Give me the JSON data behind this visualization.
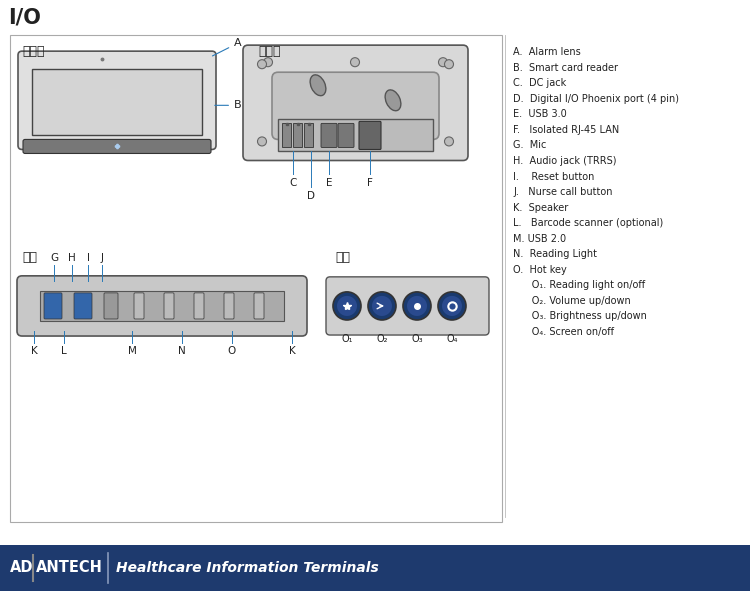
{
  "title": "I/O",
  "bg_color": "#ffffff",
  "front_label": "前面板",
  "back_label": "后面板",
  "bottom_label": "底部",
  "hotkey_label": "热键",
  "legend_items": [
    "A.  Alarm lens",
    "B.  Smart card reader",
    "C.  DC jack",
    "D.  Digital I/O Phoenix port (4 pin)",
    "E.  USB 3.0",
    "F.   Isolated RJ-45 LAN",
    "G.  Mic",
    "H.  Audio jack (TRRS)",
    "I.    Reset button",
    "J.   Nurse call button",
    "K.  Speaker",
    "L.   Barcode scanner (optional)",
    "M. USB 2.0",
    "N.  Reading Light",
    "O.  Hot key",
    "      O₁. Reading light on/off",
    "      O₂. Volume up/down",
    "      O₃. Brightness up/down",
    "      O₄. Screen on/off"
  ],
  "footer_bg": "#1e3a6e",
  "footer_text_color": "#ffffff",
  "label_color": "#2a7ab8",
  "dark_color": "#222222",
  "gray_dark": "#555555",
  "gray_med": "#888888",
  "gray_light": "#cccccc",
  "gray_bg": "#dddddd",
  "gray_frame": "#aaaaaa"
}
